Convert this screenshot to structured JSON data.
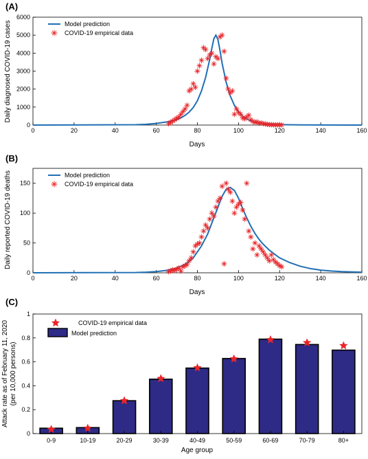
{
  "chart_data": [
    {
      "panel": "(A)",
      "type": "line",
      "xlabel": "Days",
      "ylabel": "Daily diagnosed COVID-19 cases",
      "xlim": [
        0,
        160
      ],
      "ylim": [
        0,
        6000
      ],
      "xticks": [
        0,
        20,
        40,
        60,
        80,
        100,
        120,
        140,
        160
      ],
      "yticks": [
        0,
        1000,
        2000,
        3000,
        4000,
        5000,
        6000
      ],
      "grid": false,
      "legend_position": "top-left",
      "legend": [
        "Model prediction",
        "COVID-19 empirical data"
      ],
      "series": [
        {
          "name": "Model prediction",
          "kind": "line",
          "color": "#1f6fb4",
          "x": [
            0,
            50,
            55,
            60,
            65,
            70,
            72,
            74,
            76,
            78,
            80,
            82,
            84,
            86,
            87,
            88,
            89,
            90,
            91,
            92,
            94,
            96,
            98,
            100,
            102,
            104,
            106,
            110,
            115,
            120,
            130,
            140,
            160
          ],
          "y": [
            0,
            20,
            45,
            90,
            170,
            300,
            400,
            540,
            720,
            980,
            1350,
            1900,
            2650,
            3650,
            4250,
            4800,
            5000,
            4750,
            4150,
            3450,
            2380,
            1620,
            1100,
            740,
            500,
            340,
            230,
            110,
            50,
            25,
            8,
            3,
            0
          ]
        },
        {
          "name": "COVID-19 empirical data",
          "kind": "scatter",
          "color": "#e8262a",
          "x": [
            66,
            67,
            68,
            69,
            70,
            71,
            72,
            73,
            74,
            75,
            76,
            77,
            78,
            79,
            80,
            81,
            82,
            83,
            84,
            85,
            86,
            87,
            88,
            89,
            90,
            91,
            92,
            93,
            94,
            95,
            96,
            97,
            98,
            99,
            100,
            101,
            102,
            103,
            104,
            105,
            106,
            107,
            108,
            109,
            110,
            111,
            112,
            113,
            114,
            115,
            116,
            117,
            118,
            119,
            120,
            121
          ],
          "y": [
            80,
            150,
            220,
            300,
            380,
            450,
            600,
            750,
            900,
            1100,
            1900,
            2000,
            2300,
            2100,
            3000,
            3300,
            3600,
            4300,
            4200,
            3700,
            3900,
            4000,
            3400,
            3800,
            3700,
            4900,
            5000,
            4100,
            2600,
            2000,
            1800,
            1900,
            600,
            900,
            700,
            600,
            400,
            350,
            450,
            550,
            300,
            200,
            150,
            180,
            100,
            120,
            80,
            60,
            40,
            30,
            20,
            15,
            10,
            10,
            8,
            5
          ]
        }
      ]
    },
    {
      "panel": "(B)",
      "type": "line",
      "xlabel": "Days",
      "ylabel": "Daily reported COVID-19 deaths",
      "xlim": [
        0,
        160
      ],
      "ylim": [
        0,
        175
      ],
      "xticks": [
        0,
        20,
        40,
        60,
        80,
        100,
        120,
        140,
        160
      ],
      "yticks": [
        0,
        50,
        100,
        150
      ],
      "grid": false,
      "legend_position": "top-left",
      "legend": [
        "Model prediction",
        "COVID-19 empirical data"
      ],
      "series": [
        {
          "name": "Model prediction",
          "kind": "line",
          "color": "#1f6fb4",
          "x": [
            0,
            50,
            55,
            60,
            65,
            70,
            74,
            78,
            82,
            85,
            88,
            90,
            92,
            94,
            96,
            98,
            100,
            102,
            104,
            106,
            108,
            110,
            112,
            115,
            118,
            120,
            125,
            130,
            135,
            140,
            145,
            150,
            160
          ],
          "y": [
            0,
            0.5,
            1,
            2,
            4,
            8,
            14,
            25,
            45,
            65,
            92,
            110,
            128,
            140,
            143,
            138,
            125,
            108,
            92,
            78,
            66,
            56,
            48,
            38,
            30,
            25,
            17,
            11,
            7,
            4.5,
            3,
            2,
            1
          ]
        },
        {
          "name": "COVID-19 empirical data",
          "kind": "scatter",
          "color": "#e8262a",
          "x": [
            66,
            67,
            68,
            69,
            70,
            71,
            72,
            73,
            74,
            75,
            76,
            77,
            78,
            79,
            80,
            81,
            82,
            83,
            84,
            85,
            86,
            87,
            88,
            89,
            90,
            91,
            92,
            93,
            94,
            95,
            96,
            97,
            98,
            99,
            100,
            101,
            102,
            103,
            104,
            105,
            106,
            107,
            108,
            109,
            110,
            111,
            112,
            113,
            114,
            115,
            116,
            117,
            118,
            119,
            120,
            121
          ],
          "y": [
            2,
            3,
            5,
            4,
            6,
            8,
            3,
            10,
            12,
            14,
            20,
            25,
            35,
            45,
            48,
            50,
            60,
            70,
            80,
            75,
            90,
            100,
            95,
            110,
            120,
            125,
            145,
            15,
            150,
            140,
            135,
            120,
            100,
            110,
            115,
            118,
            105,
            90,
            150,
            70,
            60,
            40,
            50,
            30,
            45,
            40,
            35,
            30,
            25,
            20,
            30,
            22,
            18,
            15,
            12,
            10
          ]
        }
      ]
    },
    {
      "panel": "(C)",
      "type": "bar",
      "xlabel": "Age group",
      "ylabel": "Attack rate as of February 11, 2020",
      "ylabel2": "(per 10,000 persons)",
      "categories": [
        "0-9",
        "10-19",
        "20-29",
        "30-39",
        "40-49",
        "50-59",
        "60-69",
        "70-79",
        "80+"
      ],
      "ylim": [
        0,
        1
      ],
      "yticks": [
        0,
        0.2,
        0.4,
        0.6,
        0.8,
        1
      ],
      "grid": false,
      "legend_position": "top-left",
      "legend": [
        "COVID-19 empirical data",
        "Model prediction"
      ],
      "series": [
        {
          "name": "Model prediction",
          "kind": "bar",
          "color": "#2d2b86",
          "values": [
            0.045,
            0.05,
            0.275,
            0.455,
            0.548,
            0.628,
            0.79,
            0.745,
            0.698
          ]
        },
        {
          "name": "COVID-19 empirical data",
          "kind": "scatter",
          "color": "#e8262a",
          "values": [
            0.035,
            0.045,
            0.275,
            0.46,
            0.55,
            0.625,
            0.785,
            0.76,
            0.735
          ]
        }
      ]
    }
  ]
}
